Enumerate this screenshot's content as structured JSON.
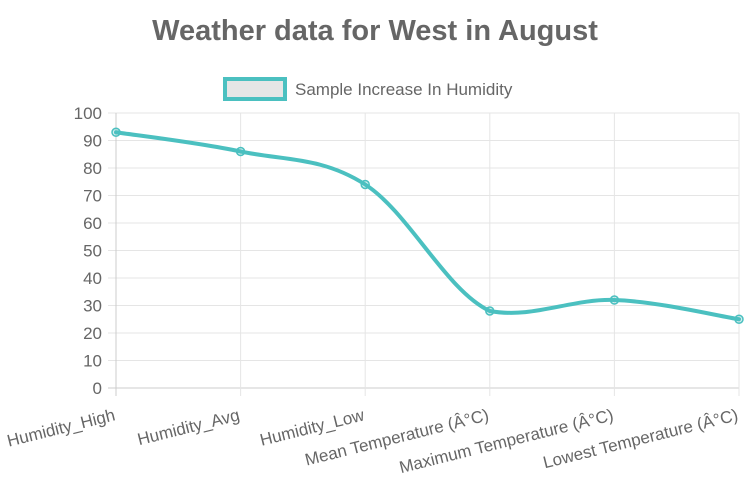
{
  "chart_data": {
    "type": "line",
    "title": "Weather data for West in August",
    "categories": [
      "Humidity_High",
      "Humidity_Avg",
      "Humidity_Low",
      "Mean Temperature (Â°C)",
      "Maximum Temperature (Â°C)",
      "Lowest Temperature (Â°C)"
    ],
    "series": [
      {
        "name": "Sample Increase In Humidity",
        "values": [
          93,
          86,
          74,
          28,
          32,
          25
        ],
        "color": "#4bc0c0"
      }
    ],
    "ylim": [
      0,
      100
    ],
    "yticks": [
      0,
      10,
      20,
      30,
      40,
      50,
      60,
      70,
      80,
      90,
      100
    ],
    "grid": true,
    "legend": "top-center",
    "xlabel": "",
    "ylabel": ""
  }
}
